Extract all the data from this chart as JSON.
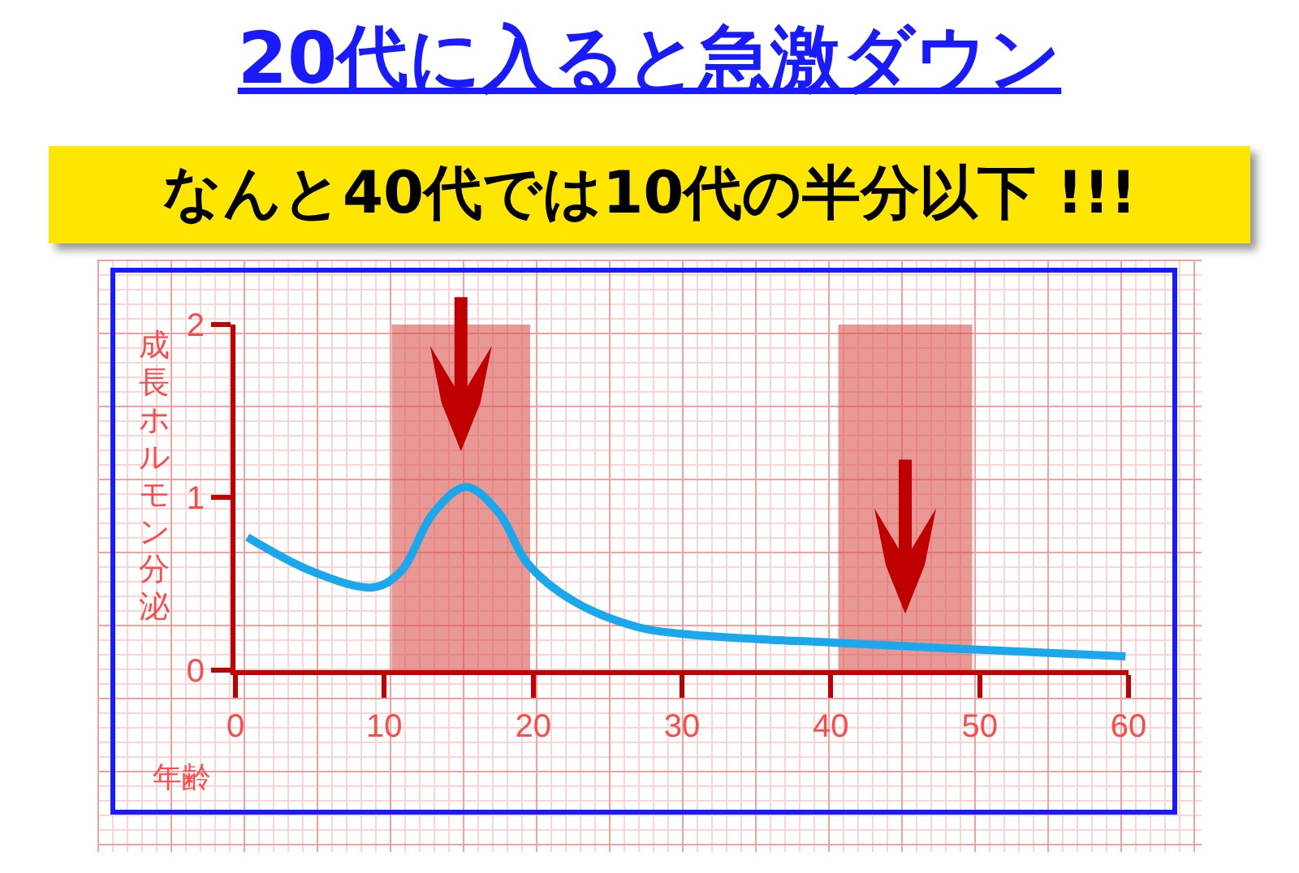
{
  "chart_data": {
    "type": "line",
    "title": "20代に入ると急激ダウン",
    "subtitle": "なんと40代では10代の半分以下 !!!",
    "xlabel": "年齢",
    "ylabel": "成長ホルモン分泌",
    "x": [
      0.8,
      5.2,
      9.3,
      11.1,
      13.3,
      15.5,
      17.7,
      19.6,
      22.7,
      27,
      30,
      35.1,
      40.1,
      49.6,
      59.8
    ],
    "series": [
      {
        "color": "#1aa7ec",
        "values": [
          0.77,
          0.57,
          0.48,
          0.57,
          0.91,
          1.06,
          0.91,
          0.62,
          0.4,
          0.25,
          0.21,
          0.18,
          0.16,
          0.12,
          0.08
        ]
      }
    ],
    "xlim": [
      0,
      60
    ],
    "xticks": [
      0,
      10,
      20,
      30,
      40,
      50,
      60
    ],
    "ylim": [
      0,
      2
    ],
    "yticks": [
      0,
      1,
      2
    ],
    "bands": [
      {
        "axis": "x",
        "from": 10.5,
        "to": 19.8,
        "color": "#d9534f"
      },
      {
        "axis": "x",
        "from": 40.5,
        "to": 49.5,
        "color": "#d9534f"
      }
    ],
    "marker": "none",
    "line_style": "solid",
    "grid": false
  }
}
